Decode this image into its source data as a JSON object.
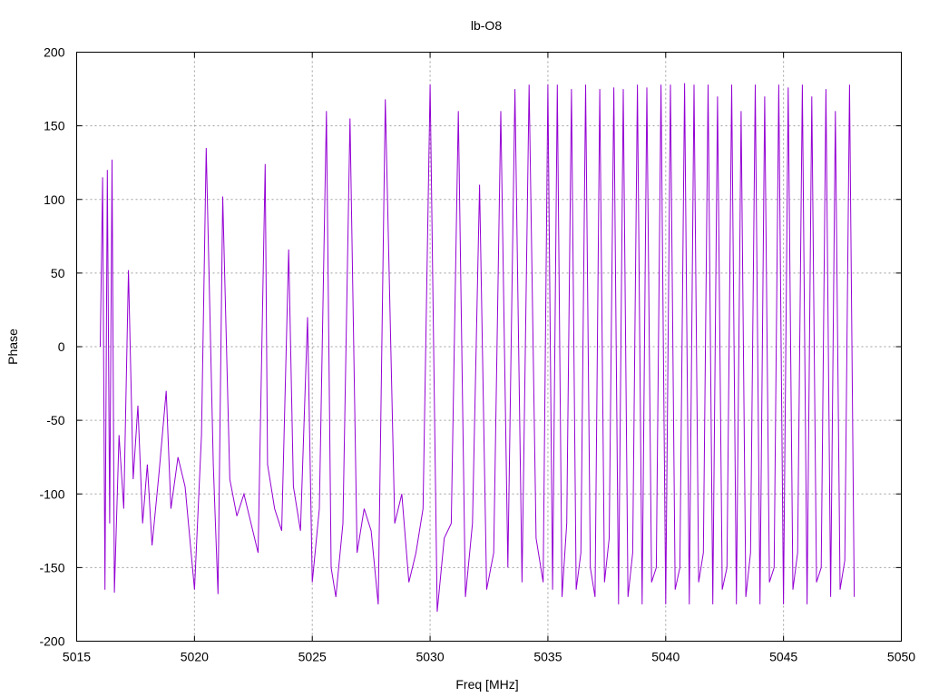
{
  "chart_data": {
    "type": "line",
    "title": "lb-O8",
    "xlabel": "Freq [MHz]",
    "ylabel": "Phase",
    "xlim": [
      5015,
      5050
    ],
    "ylim": [
      -200,
      200
    ],
    "x_ticks": [
      5015,
      5020,
      5025,
      5030,
      5035,
      5040,
      5045,
      5050
    ],
    "y_ticks": [
      -200,
      -150,
      -100,
      -50,
      0,
      50,
      100,
      150,
      200
    ],
    "grid": true,
    "legend": "none",
    "series": [
      {
        "color": "#9400d3",
        "x": [
          5016.0,
          5016.1,
          5016.2,
          5016.3,
          5016.4,
          5016.5,
          5016.6,
          5016.8,
          5017.0,
          5017.2,
          5017.4,
          5017.6,
          5017.8,
          5018.0,
          5018.2,
          5018.5,
          5018.8,
          5019.0,
          5019.3,
          5019.6,
          5020.0,
          5020.3,
          5020.5,
          5020.8,
          5021.0,
          5021.2,
          5021.5,
          5021.8,
          5022.1,
          5022.4,
          5022.7,
          5023.0,
          5023.1,
          5023.4,
          5023.7,
          5024.0,
          5024.2,
          5024.5,
          5024.8,
          5025.0,
          5025.3,
          5025.6,
          5025.8,
          5026.0,
          5026.3,
          5026.6,
          5026.9,
          5027.2,
          5027.5,
          5027.8,
          5028.1,
          5028.5,
          5028.8,
          5029.1,
          5029.4,
          5029.7,
          5030.0,
          5030.3,
          5030.6,
          5030.9,
          5031.2,
          5031.5,
          5031.8,
          5032.1,
          5032.4,
          5032.7,
          5033.0,
          5033.3,
          5033.6,
          5033.9,
          5034.2,
          5034.5,
          5034.8,
          5035.0,
          5035.2,
          5035.4,
          5035.6,
          5035.8,
          5036.0,
          5036.2,
          5036.4,
          5036.6,
          5036.8,
          5037.0,
          5037.2,
          5037.4,
          5037.6,
          5037.8,
          5038.0,
          5038.2,
          5038.4,
          5038.6,
          5038.8,
          5039.0,
          5039.2,
          5039.4,
          5039.6,
          5039.8,
          5040.0,
          5040.2,
          5040.4,
          5040.6,
          5040.8,
          5041.0,
          5041.2,
          5041.4,
          5041.6,
          5041.8,
          5042.0,
          5042.2,
          5042.4,
          5042.6,
          5042.8,
          5043.0,
          5043.2,
          5043.4,
          5043.6,
          5043.8,
          5044.0,
          5044.2,
          5044.4,
          5044.6,
          5044.8,
          5045.0,
          5045.2,
          5045.4,
          5045.6,
          5045.8,
          5046.0,
          5046.2,
          5046.4,
          5046.6,
          5046.8,
          5047.0,
          5047.2,
          5047.4,
          5047.6,
          5047.8,
          5048.0
        ],
        "y": [
          0,
          115,
          -165,
          120,
          -120,
          127,
          -167,
          -60,
          -110,
          52,
          -90,
          -40,
          -120,
          -80,
          -135,
          -85,
          -30,
          -110,
          -75,
          -95,
          -165,
          -60,
          135,
          -80,
          -168,
          102,
          -90,
          -115,
          -100,
          -120,
          -140,
          124,
          -80,
          -110,
          -125,
          66,
          -95,
          -125,
          20,
          -160,
          -110,
          160,
          -150,
          -170,
          -120,
          155,
          -140,
          -110,
          -125,
          -175,
          168,
          -120,
          -100,
          -160,
          -140,
          -110,
          178,
          -180,
          -130,
          -120,
          160,
          -170,
          -120,
          110,
          -165,
          -140,
          160,
          -150,
          175,
          -160,
          178,
          -130,
          -160,
          178,
          -165,
          178,
          -170,
          -120,
          175,
          -165,
          -140,
          178,
          -150,
          -170,
          175,
          -160,
          -130,
          176,
          -175,
          175,
          -170,
          -140,
          178,
          -175,
          176,
          -160,
          -150,
          178,
          -175,
          178,
          -165,
          -150,
          179,
          -175,
          178,
          -160,
          -140,
          178,
          -175,
          170,
          -165,
          -150,
          178,
          -175,
          160,
          -170,
          -140,
          178,
          -175,
          170,
          -160,
          -150,
          178,
          -175,
          176,
          -165,
          -140,
          178,
          -175,
          170,
          -160,
          -150,
          175,
          -170,
          160,
          -165,
          -145,
          178,
          -170
        ]
      }
    ]
  }
}
